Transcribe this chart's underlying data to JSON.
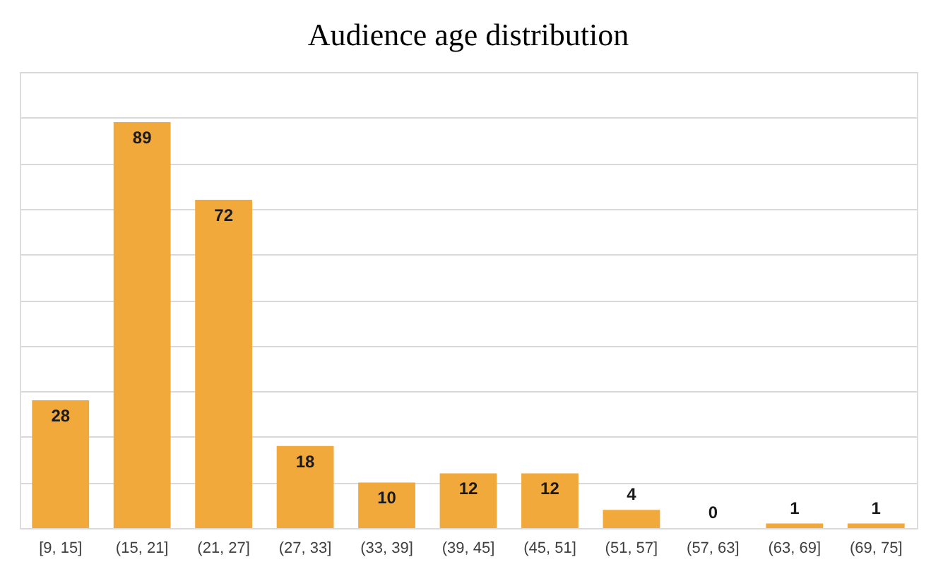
{
  "chart_data": {
    "type": "bar",
    "title": "Audience age distribution",
    "categories": [
      "[9, 15]",
      "(15, 21]",
      "(21, 27]",
      "(27, 33]",
      "(33, 39]",
      "(39, 45]",
      "(45, 51]",
      "(51, 57]",
      "(57, 63]",
      "(63, 69]",
      "(69, 75]"
    ],
    "values": [
      28,
      89,
      72,
      18,
      10,
      12,
      12,
      4,
      0,
      1,
      1
    ],
    "color": "#f2a93b",
    "ylim": [
      0,
      100
    ],
    "yticks": [
      {
        "value": 0,
        "label": null
      },
      {
        "value": 10,
        "label": null
      },
      {
        "value": 20,
        "label": null
      },
      {
        "value": 30,
        "label": null
      },
      {
        "value": 40,
        "label": null
      },
      {
        "value": 50,
        "label": null
      },
      {
        "value": 60,
        "label": null
      },
      {
        "value": 70,
        "label": null
      },
      {
        "value": 80,
        "label": null
      },
      {
        "value": 90,
        "label": null
      },
      {
        "value": 100,
        "label": null
      }
    ],
    "grid": "y",
    "tick_labels": "x",
    "data_labels": true
  }
}
